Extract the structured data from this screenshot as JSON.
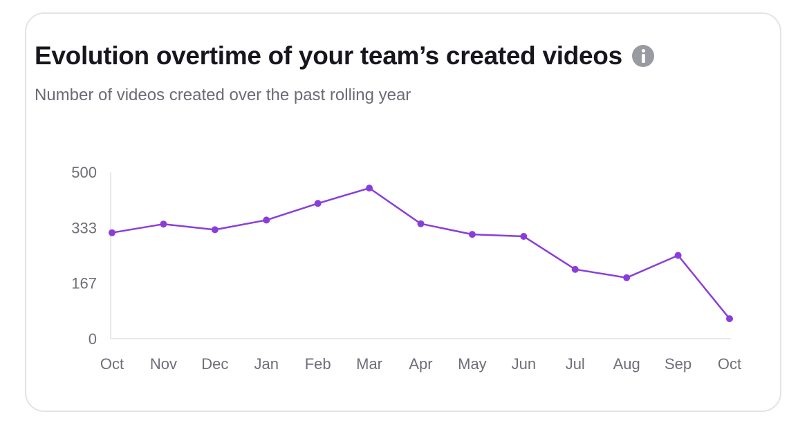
{
  "card": {
    "title": "Evolution overtime of your team’s created videos",
    "subtitle": "Number of videos created over the past rolling year",
    "info_icon": "info-icon"
  },
  "chart_data": {
    "type": "line",
    "categories": [
      "Oct",
      "Nov",
      "Dec",
      "Jan",
      "Feb",
      "Mar",
      "Apr",
      "May",
      "Jun",
      "Jul",
      "Aug",
      "Sep",
      "Oct"
    ],
    "series": [
      {
        "values": [
          318,
          344,
          327,
          356,
          406,
          452,
          345,
          313,
          307,
          208,
          183,
          250,
          60
        ]
      }
    ],
    "y_ticks": [
      "0",
      "167",
      "333",
      "500"
    ],
    "ylim": [
      0,
      500
    ],
    "xlabel": "",
    "ylabel": "",
    "grid": false,
    "line_color": "#8a3ddb",
    "axis_color": "#e2e2e6"
  }
}
